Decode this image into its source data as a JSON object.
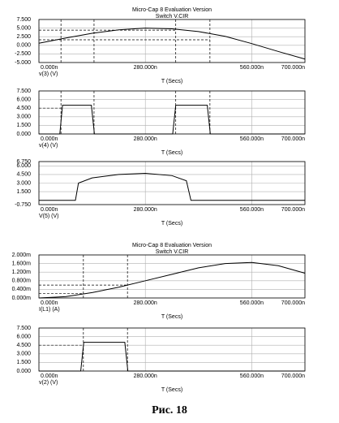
{
  "chart_data": [
    {
      "type": "line",
      "title": "Micro-Cap 8 Evaluation Version",
      "subtitle": "Switch V.CIR",
      "xlabel": "T (Secs)",
      "ylabel": "v(3) (V)",
      "xlim": [
        0,
        700
      ],
      "xticks": [
        {
          "value": 0,
          "label": "0.000n"
        },
        {
          "value": 280,
          "label": "280.000n"
        },
        {
          "value": 560,
          "label": "560.000n"
        },
        {
          "value": 700,
          "label": "700.000n"
        }
      ],
      "ylim": [
        -5,
        7.5
      ],
      "yticks": [
        {
          "value": 7.5,
          "label": "7.500"
        },
        {
          "value": 5,
          "label": "5.000"
        },
        {
          "value": 2.5,
          "label": "2.500"
        },
        {
          "value": 0,
          "label": "0.000"
        },
        {
          "value": -2.5,
          "label": "-2.500"
        },
        {
          "value": -5,
          "label": "-5.000"
        }
      ],
      "grid": true,
      "x": [
        0,
        70,
        140,
        210,
        280,
        350,
        420,
        490,
        560,
        630,
        700
      ],
      "series": [
        {
          "color": "#000000",
          "values": [
            0.6,
            2.1,
            3.5,
            4.5,
            5.0,
            4.8,
            4.0,
            2.6,
            0.5,
            -1.8,
            -4.0
          ]
        }
      ],
      "guides": {
        "x": [
          58,
          145,
          360,
          450
        ],
        "y": [
          {
            "value": 4.4,
            "to": 360
          },
          {
            "value": 1.6,
            "to": 450
          }
        ]
      }
    },
    {
      "type": "line",
      "xlabel": "T (Secs)",
      "ylabel": "v(4) (V)",
      "xlim": [
        0,
        700
      ],
      "xticks": [
        {
          "value": 0,
          "label": "0.000n"
        },
        {
          "value": 280,
          "label": "280.000n"
        },
        {
          "value": 560,
          "label": "560.000n"
        },
        {
          "value": 700,
          "label": "700.000n"
        }
      ],
      "ylim": [
        0,
        7.5
      ],
      "yticks": [
        {
          "value": 7.5,
          "label": "7.500"
        },
        {
          "value": 6,
          "label": "6.000"
        },
        {
          "value": 4.5,
          "label": "4.500"
        },
        {
          "value": 3,
          "label": "3.000"
        },
        {
          "value": 1.5,
          "label": "1.500"
        },
        {
          "value": 0,
          "label": "0.000"
        }
      ],
      "grid": true,
      "x": [
        0,
        55,
        62,
        138,
        146,
        352,
        360,
        443,
        451,
        700
      ],
      "series": [
        {
          "color": "#000000",
          "values": [
            0,
            0,
            5,
            5,
            0,
            0,
            5,
            5,
            0,
            0
          ]
        }
      ],
      "guides": {
        "x": [
          58,
          145,
          360,
          450
        ],
        "y": [
          {
            "value": 4.5,
            "to": 58
          }
        ]
      }
    },
    {
      "type": "line",
      "xlabel": "T (Secs)",
      "ylabel": "V(5) (V)",
      "xlim": [
        0,
        700
      ],
      "xticks": [
        {
          "value": 0,
          "label": "0.000n"
        },
        {
          "value": 280,
          "label": "280.000n"
        },
        {
          "value": 560,
          "label": "560.000n"
        },
        {
          "value": 700,
          "label": "700.000n"
        }
      ],
      "ylim": [
        -0.75,
        6.75
      ],
      "yticks": [
        {
          "value": 6.75,
          "label": "6.750"
        },
        {
          "value": 6,
          "label": "6.000"
        },
        {
          "value": 4.5,
          "label": "4.500"
        },
        {
          "value": 3,
          "label": "3.000"
        },
        {
          "value": 1.5,
          "label": "1.500"
        },
        {
          "value": -0.75,
          "label": "-0.750"
        }
      ],
      "grid": true,
      "x": [
        0,
        96,
        104,
        140,
        210,
        280,
        350,
        388,
        400,
        700
      ],
      "series": [
        {
          "color": "#000000",
          "values": [
            0,
            0,
            3.0,
            3.9,
            4.5,
            4.7,
            4.3,
            3.4,
            0,
            0
          ]
        }
      ]
    },
    {
      "type": "line",
      "title": "Micro-Cap 8 Evaluation Version",
      "subtitle": "Switch V.CIR",
      "xlabel": "T (Secs)",
      "ylabel": "I(L1) (A)",
      "xlim": [
        0,
        700
      ],
      "xticks": [
        {
          "value": 0,
          "label": "0.000n"
        },
        {
          "value": 280,
          "label": "280.000n"
        },
        {
          "value": 560,
          "label": "560.000n"
        },
        {
          "value": 700,
          "label": "700.000n"
        }
      ],
      "ylim": [
        0,
        0.002
      ],
      "yticks": [
        {
          "value": 0.002,
          "label": "2.000m"
        },
        {
          "value": 0.0016,
          "label": "1.600m"
        },
        {
          "value": 0.0012,
          "label": "1.200m"
        },
        {
          "value": 0.0008,
          "label": "0.800m"
        },
        {
          "value": 0.0004,
          "label": "0.400m"
        },
        {
          "value": 0,
          "label": "0.000m"
        }
      ],
      "grid": true,
      "x": [
        0,
        70,
        140,
        210,
        280,
        350,
        420,
        490,
        560,
        630,
        700
      ],
      "series": [
        {
          "color": "#000000",
          "values": [
            0,
            6e-05,
            0.00025,
            0.0005,
            0.0008,
            0.0011,
            0.0014,
            0.0016,
            0.00165,
            0.0015,
            0.00115
          ]
        }
      ],
      "guides": {
        "x": [
          117,
          233
        ],
        "y": [
          {
            "value": 0.0002,
            "to": 117
          },
          {
            "value": 0.0006,
            "to": 233
          }
        ]
      }
    },
    {
      "type": "line",
      "xlabel": "T (Secs)",
      "ylabel": "v(2) (V)",
      "xlim": [
        0,
        700
      ],
      "xticks": [
        {
          "value": 0,
          "label": "0.000n"
        },
        {
          "value": 280,
          "label": "280.000n"
        },
        {
          "value": 560,
          "label": "560.000n"
        },
        {
          "value": 700,
          "label": "700.000n"
        }
      ],
      "ylim": [
        0,
        7.5
      ],
      "yticks": [
        {
          "value": 7.5,
          "label": "7.500"
        },
        {
          "value": 6,
          "label": "6.000"
        },
        {
          "value": 4.5,
          "label": "4.500"
        },
        {
          "value": 3,
          "label": "3.000"
        },
        {
          "value": 1.5,
          "label": "1.500"
        },
        {
          "value": 0,
          "label": "0.000"
        }
      ],
      "grid": true,
      "x": [
        0,
        110,
        118,
        226,
        234,
        700
      ],
      "series": [
        {
          "color": "#000000",
          "values": [
            0,
            0,
            5,
            5,
            0,
            0
          ]
        }
      ],
      "guides": {
        "x": [
          117,
          233
        ],
        "y": [
          {
            "value": 4.5,
            "to": 117
          }
        ]
      }
    }
  ],
  "caption": "Рис.  18"
}
